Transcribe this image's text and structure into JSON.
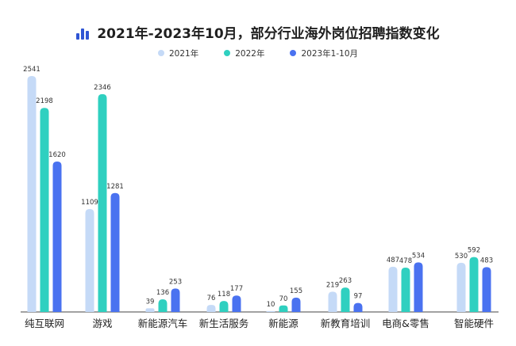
{
  "chart_data": {
    "type": "bar",
    "title": "2021年-2023年10月，部分行业海外岗位招聘指数变化",
    "categories": [
      "纯互联网",
      "游戏",
      "新能源汽车",
      "新生活服务",
      "新能源",
      "新教育培训",
      "电商&零售",
      "智能硬件"
    ],
    "series": [
      {
        "name": "2021年",
        "color": "#c5daf7",
        "values": [
          2541,
          1109,
          39,
          76,
          10,
          219,
          487,
          530
        ]
      },
      {
        "name": "2022年",
        "color": "#2fd0c0",
        "values": [
          2198,
          2346,
          136,
          118,
          70,
          263,
          478,
          592
        ]
      },
      {
        "name": "2023年1-10月",
        "color": "#4a72f0",
        "values": [
          1620,
          1281,
          253,
          177,
          155,
          97,
          534,
          483
        ]
      }
    ],
    "legend_position": "top",
    "grid": false,
    "axis_color": "#444444"
  }
}
